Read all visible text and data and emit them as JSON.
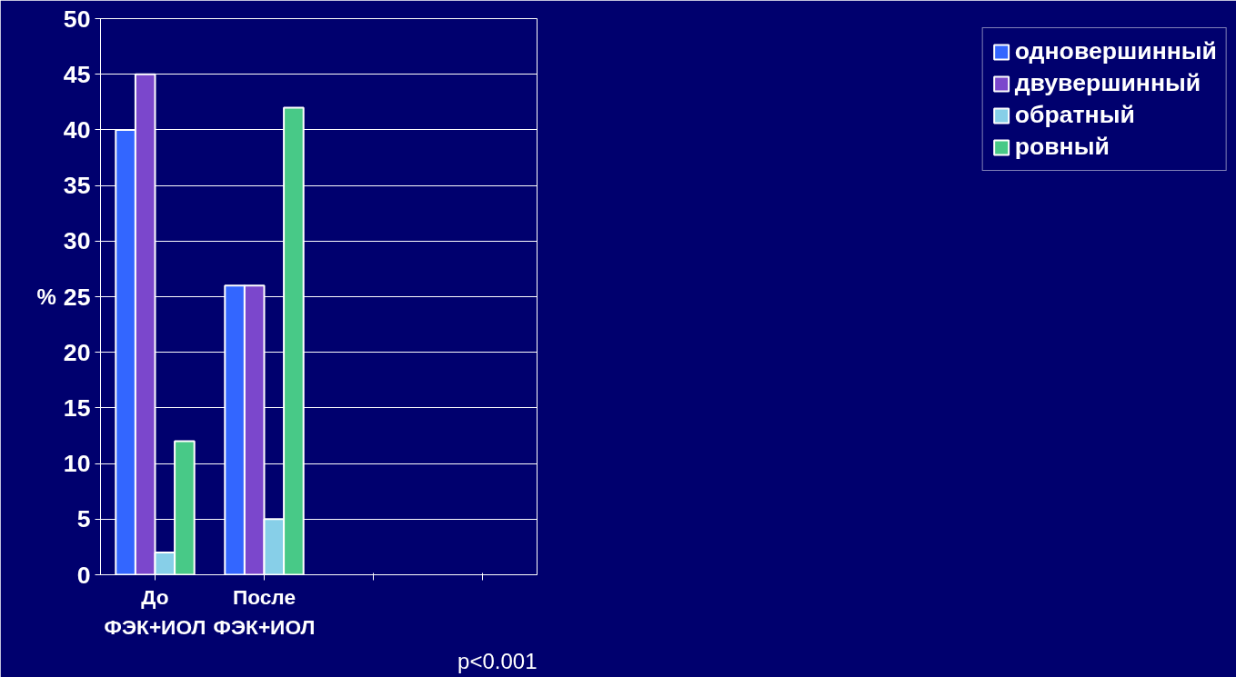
{
  "chart_data": {
    "type": "bar",
    "ylabel": "%",
    "categories": [
      "До\nФЭК+ИОЛ",
      "После\nФЭК+ИОЛ",
      null,
      null
    ],
    "series": [
      {
        "name": "одновершинный",
        "color": "#3366ff",
        "values": [
          40,
          26,
          null,
          null
        ]
      },
      {
        "name": "двувершинный",
        "color": "#7b47cc",
        "values": [
          45,
          26,
          null,
          null
        ]
      },
      {
        "name": "обратный",
        "color": "#87cfe8",
        "values": [
          2,
          5,
          null,
          null
        ]
      },
      {
        "name": "ровный",
        "color": "#48c987",
        "values": [
          12,
          42,
          null,
          null
        ]
      }
    ],
    "ylim": [
      0,
      50
    ],
    "yticks": [
      0,
      5,
      10,
      15,
      20,
      25,
      30,
      35,
      40,
      45,
      50
    ],
    "grid": "y",
    "legend": "right",
    "annotations": [
      "p<0.001"
    ]
  }
}
